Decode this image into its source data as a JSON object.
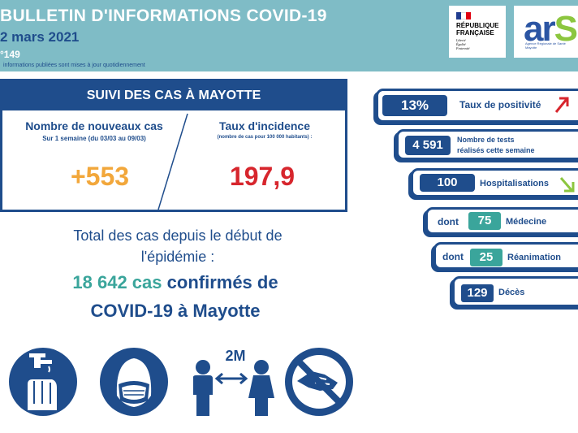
{
  "header": {
    "title": "BULLETIN D'INFORMATIONS COVID-19",
    "date": "2 mars 2021",
    "number": "°149",
    "note": "informations publiées sont mises à jour quotidiennement"
  },
  "logos": {
    "republique": [
      "RÉPUBLIQUE",
      "FRANÇAISE"
    ],
    "motto": [
      "Liberté",
      "Égalité",
      "Fraternité"
    ],
    "ars": {
      "ar": "ar",
      "s": "S",
      "sub": [
        "Agence Régionale de Santé",
        "Mayotte"
      ]
    }
  },
  "cases": {
    "heading": "SUIVI DES CAS À MAYOTTE",
    "new_cases": {
      "title": "Nombre de nouveaux cas",
      "subtitle": "Sur 1 semaine (du 03/03 au 09/03)",
      "value": "+553"
    },
    "incidence": {
      "title": "Taux d'incidence",
      "subtitle": "(nombre de cas pour 100 000 habitants) :",
      "value": "197,9"
    }
  },
  "total": {
    "line1": "Total des cas depuis le début de",
    "line2": "l'épidémie :",
    "count": "18 642 cas",
    "confirmed": "confirmés de",
    "line4": "COVID-19 à Mayotte"
  },
  "stats": {
    "positivity": {
      "value": "13%",
      "label": "Taux de positivité",
      "trend": "up"
    },
    "tests": {
      "value": "4 591",
      "label_1": "Nombre de tests",
      "label_2": "réalisés cette semaine"
    },
    "hospital": {
      "value": "100",
      "label": "Hospitalisations",
      "trend": "down"
    },
    "medecine": {
      "prefix": "dont",
      "value": "75",
      "label": "Médecine"
    },
    "reanimation": {
      "prefix": "dont",
      "value": "25",
      "label": "Réanimation"
    },
    "deces": {
      "value": "129",
      "label": "Décès"
    }
  },
  "gestures": {
    "distance_label": "2M",
    "icons": [
      "hand-washing-icon",
      "mask-icon",
      "distancing-icon",
      "no-handshake-icon"
    ]
  },
  "colors": {
    "navy": "#1f4d8c",
    "teal": "#3aa59b",
    "header": "#7fbcc6",
    "orange": "#f2a73b",
    "red": "#d7262d",
    "green": "#8cc63f"
  }
}
